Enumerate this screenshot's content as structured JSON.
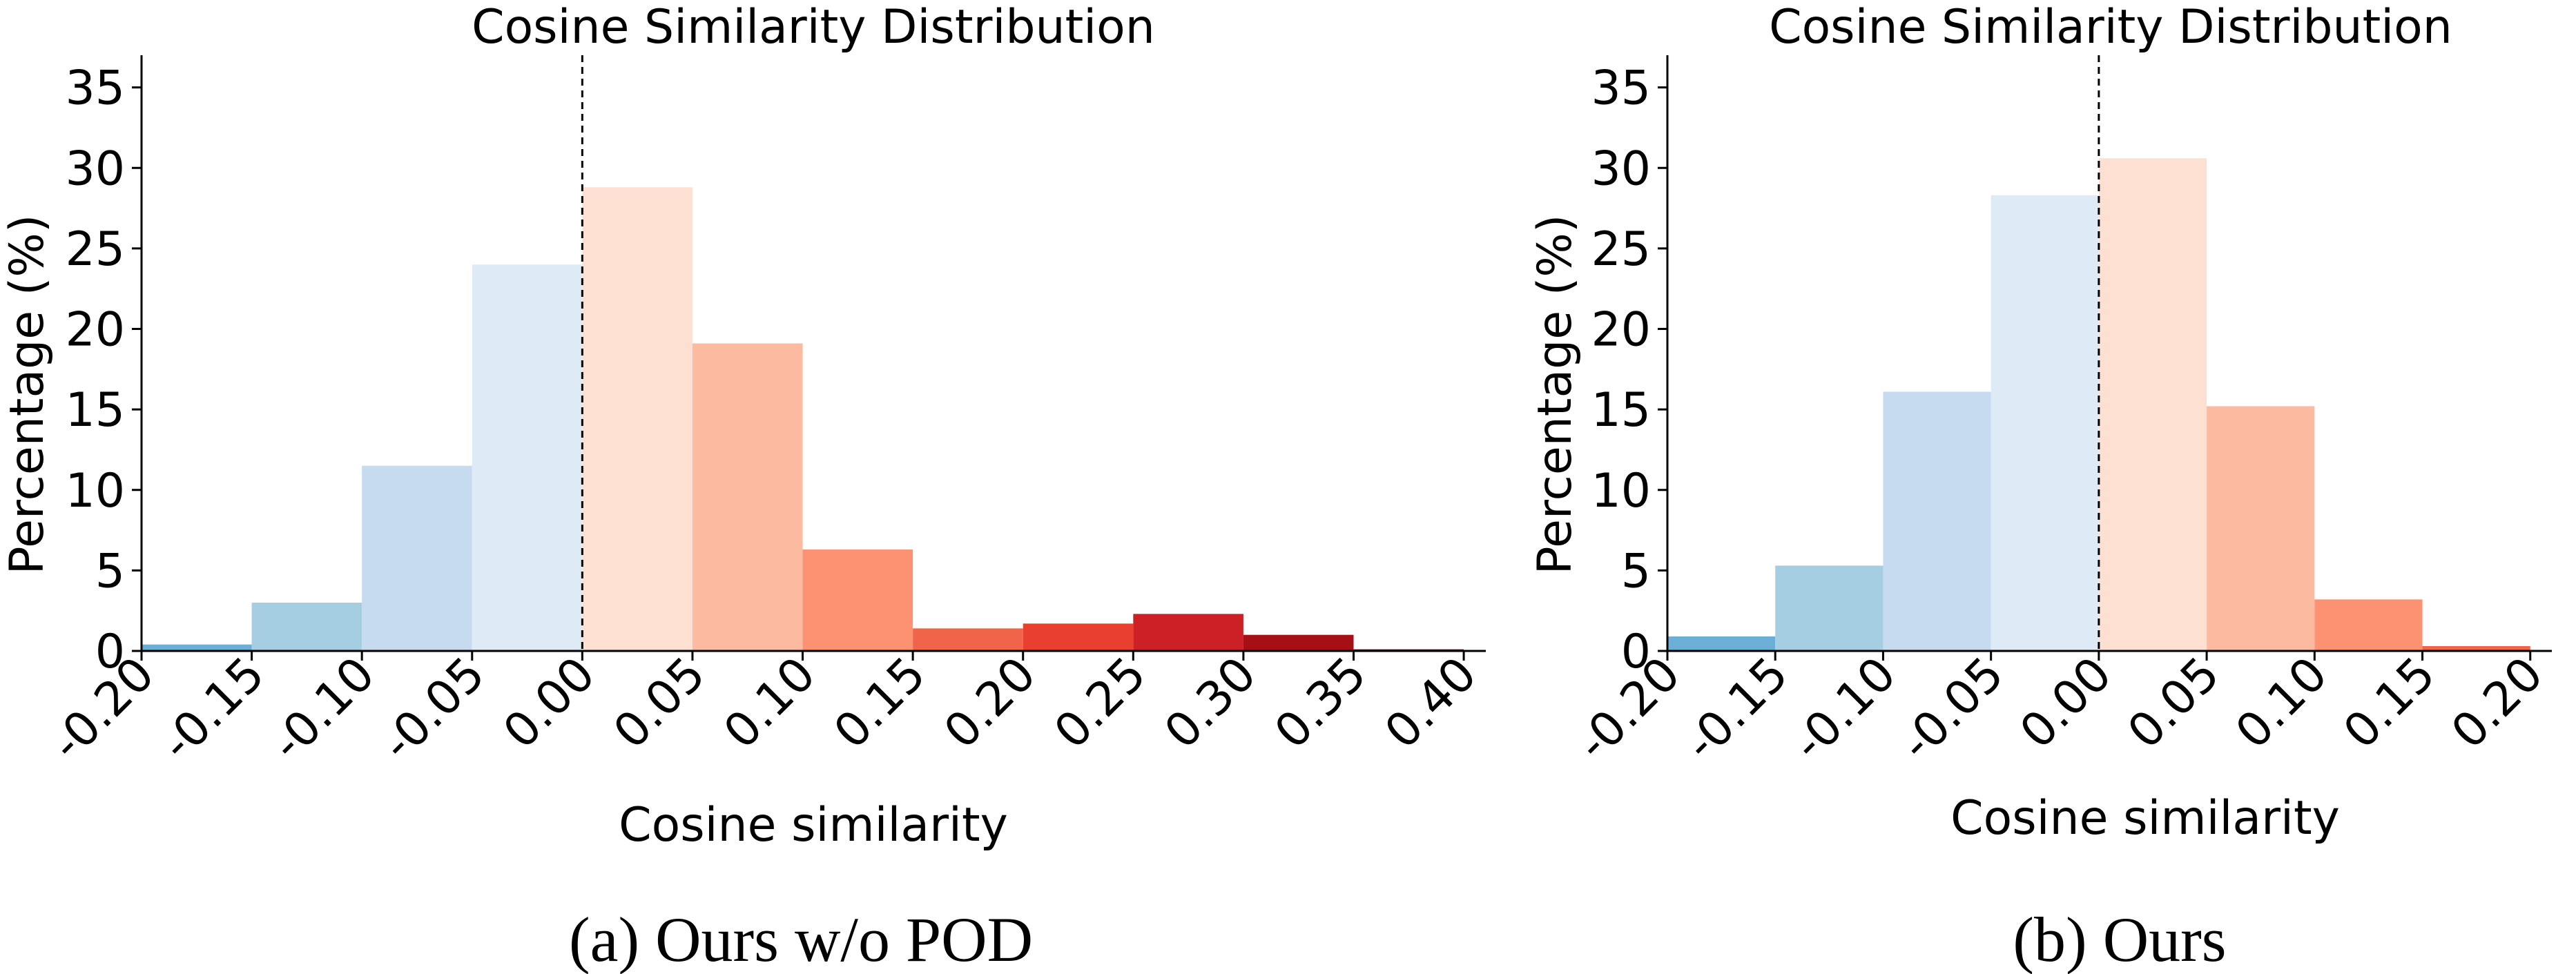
{
  "chart_data": [
    {
      "type": "bar",
      "title": "Cosine Similarity Distribution",
      "xlabel": "Cosine similarity",
      "ylabel": "Percentage (%)",
      "caption": "(a) Ours w/o POD",
      "reference_line_x": 0.0,
      "xlim": [
        -0.2,
        0.41
      ],
      "ylim": [
        0,
        37
      ],
      "xticks": [
        "-0.20",
        "-0.15",
        "-0.10",
        "-0.05",
        "0.00",
        "0.05",
        "0.10",
        "0.15",
        "0.20",
        "0.25",
        "0.30",
        "0.35",
        "0.40"
      ],
      "yticks": [
        "0",
        "5",
        "10",
        "15",
        "20",
        "25",
        "30",
        "35"
      ],
      "bin_width": 0.05,
      "bars": [
        {
          "bin_start": -0.2,
          "value": 0.4,
          "color": "#6baed6"
        },
        {
          "bin_start": -0.15,
          "value": 3.0,
          "color": "#a6cee3"
        },
        {
          "bin_start": -0.1,
          "value": 11.5,
          "color": "#c6dbef"
        },
        {
          "bin_start": -0.05,
          "value": 24.0,
          "color": "#deebf7"
        },
        {
          "bin_start": 0.0,
          "value": 28.8,
          "color": "#fee0d2"
        },
        {
          "bin_start": 0.05,
          "value": 19.1,
          "color": "#fcbba1"
        },
        {
          "bin_start": 0.1,
          "value": 6.3,
          "color": "#fc9272"
        },
        {
          "bin_start": 0.15,
          "value": 1.4,
          "color": "#f0644a"
        },
        {
          "bin_start": 0.2,
          "value": 1.7,
          "color": "#e83f30"
        },
        {
          "bin_start": 0.25,
          "value": 2.3,
          "color": "#cb2026"
        },
        {
          "bin_start": 0.3,
          "value": 1.0,
          "color": "#a50f15"
        },
        {
          "bin_start": 0.35,
          "value": 0.1,
          "color": "#67000d"
        }
      ]
    },
    {
      "type": "bar",
      "title": "Cosine Similarity Distribution",
      "xlabel": "Cosine similarity",
      "ylabel": "Percentage (%)",
      "caption": "(b) Ours",
      "reference_line_x": 0.0,
      "xlim": [
        -0.2,
        0.21
      ],
      "ylim": [
        0,
        37
      ],
      "xticks": [
        "-0.20",
        "-0.15",
        "-0.10",
        "-0.05",
        "0.00",
        "0.05",
        "0.10",
        "0.15",
        "0.20"
      ],
      "yticks": [
        "0",
        "5",
        "10",
        "15",
        "20",
        "25",
        "30",
        "35"
      ],
      "bin_width": 0.05,
      "bars": [
        {
          "bin_start": -0.2,
          "value": 0.9,
          "color": "#6baed6"
        },
        {
          "bin_start": -0.15,
          "value": 5.3,
          "color": "#a6cee3"
        },
        {
          "bin_start": -0.1,
          "value": 16.1,
          "color": "#c6dbef"
        },
        {
          "bin_start": -0.05,
          "value": 28.3,
          "color": "#deebf7"
        },
        {
          "bin_start": 0.0,
          "value": 30.6,
          "color": "#fee0d2"
        },
        {
          "bin_start": 0.05,
          "value": 15.2,
          "color": "#fcbba1"
        },
        {
          "bin_start": 0.1,
          "value": 3.2,
          "color": "#fc9272"
        },
        {
          "bin_start": 0.15,
          "value": 0.3,
          "color": "#f0644a"
        }
      ]
    }
  ]
}
